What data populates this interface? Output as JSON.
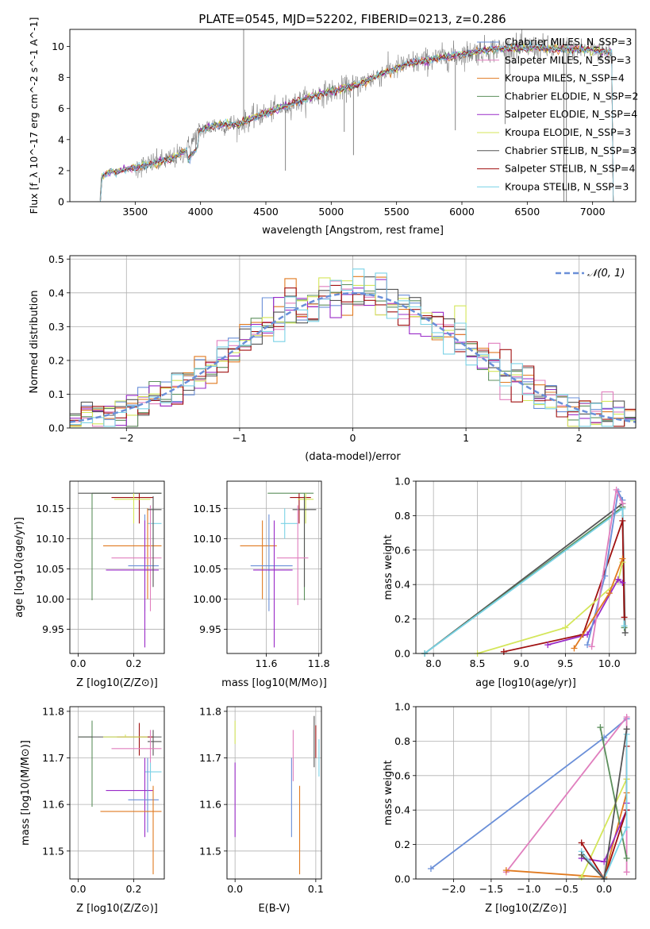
{
  "title": "PLATE=0545, MJD=52202, FIBERID=0213, z=0.286",
  "colors": {
    "Chabrier MILES": "#6a8fd8",
    "Salpeter MILES": "#e07fbe",
    "Kroupa MILES": "#e07a20",
    "Chabrier ELODIE": "#5c8f5c",
    "Salpeter ELODIE": "#9a2bc8",
    "Kroupa ELODIE": "#d4e65a",
    "Chabrier STELIB": "#555555",
    "Salpeter STELIB": "#a01010",
    "Kroupa STELIB": "#7ad2e6"
  },
  "chart_data": [
    {
      "type": "line",
      "xlabel": "wavelength [Angstrom, rest frame]",
      "ylabel": "Flux [f_λ 10^-17 erg cm^-2 s^-1 A^-1]",
      "xlim": [
        3000,
        7330
      ],
      "ylim": [
        0,
        11.1
      ],
      "xticks": [
        3500,
        4000,
        4500,
        5000,
        5500,
        6000,
        6500,
        7000
      ],
      "yticks": [
        0,
        2,
        4,
        6,
        8,
        10
      ],
      "continuum": [
        [
          3200,
          0
        ],
        [
          3230,
          0.1
        ],
        [
          3240,
          1.6
        ],
        [
          3300,
          1.9
        ],
        [
          3400,
          2.0
        ],
        [
          3500,
          2.2
        ],
        [
          3600,
          2.4
        ],
        [
          3700,
          2.6
        ],
        [
          3800,
          2.8
        ],
        [
          3900,
          3.4
        ],
        [
          4000,
          4.6
        ],
        [
          4100,
          4.9
        ],
        [
          4200,
          5.0
        ],
        [
          4300,
          5.0
        ],
        [
          4400,
          5.4
        ],
        [
          4500,
          5.7
        ],
        [
          4700,
          6.3
        ],
        [
          4900,
          6.9
        ],
        [
          5000,
          7.1
        ],
        [
          5200,
          7.5
        ],
        [
          5400,
          8.3
        ],
        [
          5600,
          8.9
        ],
        [
          5800,
          9.2
        ],
        [
          6000,
          9.5
        ],
        [
          6200,
          9.8
        ],
        [
          6400,
          9.9
        ],
        [
          6600,
          9.9
        ],
        [
          6800,
          9.8
        ],
        [
          7000,
          9.8
        ],
        [
          7150,
          9.6
        ]
      ],
      "series": [
        {
          "name": "Chabrier MILES, N_SSP=3"
        },
        {
          "name": "Salpeter MILES, N_SSP=3"
        },
        {
          "name": "Kroupa MILES, N_SSP=4"
        },
        {
          "name": "Chabrier ELODIE, N_SSP=2"
        },
        {
          "name": "Salpeter ELODIE, N_SSP=4"
        },
        {
          "name": "Kroupa ELODIE, N_SSP=3"
        },
        {
          "name": "Chabrier STELIB, N_SSP=3"
        },
        {
          "name": "Salpeter STELIB, N_SSP=4"
        },
        {
          "name": "Kroupa STELIB, N_SSP=3"
        }
      ],
      "grid": false,
      "legend": "top-right"
    },
    {
      "type": "line",
      "xlabel": "(data-model)/error",
      "ylabel": "Normed distribution",
      "xlim": [
        -2.5,
        2.5
      ],
      "ylim": [
        0,
        0.51
      ],
      "xticks": [
        -2,
        -1,
        0,
        1,
        2
      ],
      "yticks": [
        0.0,
        0.1,
        0.2,
        0.3,
        0.4,
        0.5
      ],
      "normal_label": "𝒩(0, 1)",
      "grid": true,
      "legend": "top-right"
    },
    {
      "type": "scatter",
      "xlabel": "Z [log10(Z/Z⊙)]",
      "ylabel": "age [log10(age/yr)]",
      "xlim": [
        -0.03,
        0.31
      ],
      "ylim": [
        9.91,
        10.195
      ],
      "xticks": [
        0.0,
        0.2
      ],
      "yticks": [
        9.95,
        10.0,
        10.05,
        10.1,
        10.15
      ],
      "points": [
        {
          "s": "Chabrier ELODIE",
          "x": 0.05,
          "y": 10.175,
          "ex": [
            0.05,
            0.3
          ],
          "ey": [
            9.998,
            10.175
          ]
        },
        {
          "s": "Chabrier STELIB",
          "x": 0.23,
          "y": 10.175,
          "ex": [
            0.0,
            0.3
          ],
          "ey": [
            10.175,
            10.175
          ]
        },
        {
          "s": "Salpeter STELIB",
          "x": 0.22,
          "y": 10.168,
          "ex": [
            0.12,
            0.27
          ],
          "ey": [
            10.125,
            10.175
          ]
        },
        {
          "s": "Kroupa ELODIE",
          "x": 0.2,
          "y": 10.165,
          "ex": [
            0.13,
            0.26
          ],
          "ey": [
            10.125,
            10.175
          ]
        },
        {
          "s": "Kroupa STELIB",
          "x": 0.27,
          "y": 10.125,
          "ex": [
            0.25,
            0.3
          ],
          "ey": [
            10.1,
            10.15
          ]
        },
        {
          "s": "Kroupa MILES",
          "x": 0.25,
          "y": 10.088,
          "ex": [
            0.09,
            0.3
          ],
          "ey": [
            10.0,
            10.15
          ]
        },
        {
          "s": "Salpeter MILES",
          "x": 0.26,
          "y": 10.068,
          "ex": [
            0.12,
            0.3
          ],
          "ey": [
            9.98,
            10.155
          ]
        },
        {
          "s": "Chabrier MILES",
          "x": 0.24,
          "y": 10.055,
          "ex": [
            0.18,
            0.29
          ],
          "ey": [
            9.98,
            10.14
          ]
        },
        {
          "s": "Salpeter ELODIE",
          "x": 0.24,
          "y": 10.048,
          "ex": [
            0.1,
            0.29
          ],
          "ey": [
            9.92,
            10.13
          ]
        },
        {
          "s": "Chabrier STELIB",
          "x": 0.27,
          "y": 10.148,
          "ex": [
            0.25,
            0.3
          ],
          "ey": [
            10.02,
            10.17
          ]
        }
      ]
    },
    {
      "type": "scatter",
      "xlabel": "mass [log10(M/M⊙)]",
      "xlim": [
        11.45,
        11.81
      ],
      "ylim": [
        9.91,
        10.195
      ],
      "xticks": [
        11.6,
        11.8
      ],
      "yticks": [
        9.95,
        10.0,
        10.05,
        10.1,
        10.15
      ],
      "points": [
        {
          "s": "Chabrier ELODIE",
          "x": 11.745,
          "y": 10.175,
          "ex": [
            11.605,
            11.78
          ],
          "ey": [
            9.998,
            10.175
          ]
        },
        {
          "s": "Salpeter STELIB",
          "x": 11.725,
          "y": 10.168,
          "ex": [
            11.69,
            11.77
          ],
          "ey": [
            10.125,
            10.175
          ]
        },
        {
          "s": "Kroupa ELODIE",
          "x": 11.75,
          "y": 10.165,
          "ex": [
            11.72,
            11.78
          ],
          "ey": [
            10.125,
            10.175
          ]
        },
        {
          "s": "Chabrier STELIB",
          "x": 11.745,
          "y": 10.148,
          "ex": [
            11.7,
            11.79
          ],
          "ey": [
            10.02,
            10.17
          ]
        },
        {
          "s": "Kroupa STELIB",
          "x": 11.67,
          "y": 10.125,
          "ex": [
            11.655,
            11.72
          ],
          "ey": [
            10.1,
            10.15
          ]
        },
        {
          "s": "Kroupa MILES",
          "x": 11.585,
          "y": 10.088,
          "ex": [
            11.5,
            11.64
          ],
          "ey": [
            10.0,
            10.13
          ]
        },
        {
          "s": "Salpeter MILES",
          "x": 11.72,
          "y": 10.068,
          "ex": [
            11.64,
            11.76
          ],
          "ey": [
            9.99,
            10.155
          ]
        },
        {
          "s": "Chabrier MILES",
          "x": 11.61,
          "y": 10.055,
          "ex": [
            11.54,
            11.7
          ],
          "ey": [
            9.98,
            10.14
          ]
        },
        {
          "s": "Salpeter ELODIE",
          "x": 11.63,
          "y": 10.048,
          "ex": [
            11.55,
            11.7
          ],
          "ey": [
            9.92,
            10.13
          ]
        }
      ]
    },
    {
      "type": "line",
      "xlabel": "age [log10(age/yr)]",
      "ylabel": "mass weight",
      "xlim": [
        7.8,
        10.3
      ],
      "ylim": [
        0,
        1
      ],
      "xticks": [
        8.0,
        8.5,
        9.0,
        9.5,
        10.0
      ],
      "yticks": [
        0.0,
        0.2,
        0.4,
        0.6,
        0.8,
        1.0
      ],
      "grid": true,
      "series": [
        {
          "s": "Chabrier STELIB",
          "x": [
            7.9,
            10.15,
            10.18
          ],
          "y": [
            0.0,
            0.87,
            0.12
          ]
        },
        {
          "s": "Chabrier ELODIE",
          "x": [
            7.9,
            10.15,
            10.17
          ],
          "y": [
            0.0,
            0.85,
            0.15
          ]
        },
        {
          "s": "Kroupa STELIB",
          "x": [
            7.9,
            10.15,
            10.17
          ],
          "y": [
            0.0,
            0.84,
            0.16
          ]
        },
        {
          "s": "Salpeter STELIB",
          "x": [
            8.8,
            9.7,
            10.15,
            10.17
          ],
          "y": [
            0.01,
            0.11,
            0.77,
            0.21
          ]
        },
        {
          "s": "Kroupa ELODIE",
          "x": [
            8.5,
            9.5,
            10.1,
            10.15
          ],
          "y": [
            0.0,
            0.15,
            0.42,
            0.53
          ]
        },
        {
          "s": "Salpeter ELODIE",
          "x": [
            9.3,
            9.75,
            10.1,
            10.15
          ],
          "y": [
            0.05,
            0.11,
            0.43,
            0.41
          ]
        },
        {
          "s": "Chabrier MILES",
          "x": [
            9.75,
            9.95,
            10.1,
            10.15
          ],
          "y": [
            0.05,
            0.45,
            0.94,
            0.89
          ]
        },
        {
          "s": "Salpeter MILES",
          "x": [
            9.8,
            10.08,
            10.15
          ],
          "y": [
            0.04,
            0.95,
            0.87
          ]
        },
        {
          "s": "Kroupa MILES",
          "x": [
            9.6,
            10.0,
            10.15
          ],
          "y": [
            0.03,
            0.35,
            0.55
          ]
        }
      ]
    },
    {
      "type": "scatter",
      "xlabel": "Z [log10(Z/Z⊙)]",
      "ylabel": "mass [log10(M/M⊙)]",
      "xlim": [
        -0.03,
        0.31
      ],
      "ylim": [
        11.44,
        11.81
      ],
      "xticks": [
        0.0,
        0.2
      ],
      "yticks": [
        11.5,
        11.6,
        11.7,
        11.8
      ],
      "points": [
        {
          "s": "Chabrier ELODIE",
          "x": 0.05,
          "y": 11.745,
          "ex": [
            0.0,
            0.05
          ],
          "ey": [
            11.595,
            11.78
          ]
        },
        {
          "s": "Chabrier STELIB",
          "x": 0.23,
          "y": 11.745,
          "ex": [
            0.0,
            0.3
          ],
          "ey": [
            11.745,
            11.745
          ]
        },
        {
          "s": "Salpeter STELIB",
          "x": 0.22,
          "y": 11.745,
          "ex": [
            0.14,
            0.27
          ],
          "ey": [
            11.705,
            11.775
          ]
        },
        {
          "s": "Kroupa ELODIE",
          "x": 0.17,
          "y": 11.745,
          "ex": [
            0.09,
            0.25
          ],
          "ey": [
            11.745,
            11.75
          ]
        },
        {
          "s": "Chabrier STELIB",
          "x": 0.27,
          "y": 11.735,
          "ex": [
            0.25,
            0.3
          ],
          "ey": [
            11.705,
            11.76
          ]
        },
        {
          "s": "Salpeter MILES",
          "x": 0.26,
          "y": 11.72,
          "ex": [
            0.12,
            0.3
          ],
          "ey": [
            11.65,
            11.76
          ]
        },
        {
          "s": "Kroupa STELIB",
          "x": 0.26,
          "y": 11.67,
          "ex": [
            0.24,
            0.3
          ],
          "ey": [
            11.65,
            11.69
          ]
        },
        {
          "s": "Salpeter ELODIE",
          "x": 0.24,
          "y": 11.63,
          "ex": [
            0.1,
            0.27
          ],
          "ey": [
            11.53,
            11.7
          ]
        },
        {
          "s": "Chabrier MILES",
          "x": 0.25,
          "y": 11.61,
          "ex": [
            0.18,
            0.29
          ],
          "ey": [
            11.54,
            11.7
          ]
        },
        {
          "s": "Kroupa MILES",
          "x": 0.27,
          "y": 11.585,
          "ex": [
            0.08,
            0.3
          ],
          "ey": [
            11.45,
            11.64
          ]
        }
      ]
    },
    {
      "type": "scatter",
      "xlabel": "E(B-V)",
      "xlim": [
        -0.01,
        0.107
      ],
      "ylim": [
        11.44,
        11.81
      ],
      "xticks": [
        0.0,
        0.1
      ],
      "yticks": [
        11.5,
        11.6,
        11.7,
        11.8
      ],
      "segments": [
        {
          "s": "Kroupa ELODIE",
          "x": 0.0,
          "ey": [
            11.73,
            11.78
          ]
        },
        {
          "s": "Salpeter ELODIE",
          "x": 0.0,
          "ey": [
            11.53,
            11.69
          ]
        },
        {
          "s": "Chabrier MILES",
          "x": 0.07,
          "ey": [
            11.53,
            11.7
          ]
        },
        {
          "s": "Salpeter MILES",
          "x": 0.072,
          "ey": [
            11.65,
            11.76
          ]
        },
        {
          "s": "Kroupa MILES",
          "x": 0.08,
          "ey": [
            11.45,
            11.64
          ]
        },
        {
          "s": "Chabrier STELIB",
          "x": 0.098,
          "ey": [
            11.68,
            11.79
          ]
        },
        {
          "s": "Salpeter STELIB",
          "x": 0.1,
          "ey": [
            11.7,
            11.77
          ]
        },
        {
          "s": "Kroupa STELIB",
          "x": 0.104,
          "ey": [
            11.66,
            11.74
          ]
        }
      ]
    },
    {
      "type": "line",
      "xlabel": "Z [log10(Z/Z⊙)]",
      "ylabel": "mass weight",
      "xlim": [
        -2.5,
        0.42
      ],
      "ylim": [
        0,
        1
      ],
      "xticks": [
        -2.0,
        -1.5,
        -1.0,
        -0.5,
        0.0
      ],
      "yticks": [
        0.0,
        0.2,
        0.4,
        0.6,
        0.8,
        1.0
      ],
      "grid": true,
      "series": [
        {
          "s": "Chabrier MILES",
          "x": [
            -2.3,
            0.0,
            0.3
          ],
          "y": [
            0.06,
            0.82,
            0.93
          ]
        },
        {
          "s": "Salpeter MILES",
          "x": [
            -1.3,
            0.3,
            0.3
          ],
          "y": [
            0.04,
            0.94,
            0.04
          ]
        },
        {
          "s": "Kroupa MILES",
          "x": [
            -1.3,
            0.0,
            0.3,
            0.3
          ],
          "y": [
            0.05,
            0.01,
            0.5,
            0.58
          ]
        },
        {
          "s": "Chabrier ELODIE",
          "x": [
            -0.05,
            0.3
          ],
          "y": [
            0.88,
            0.12
          ]
        },
        {
          "s": "Kroupa ELODIE",
          "x": [
            -0.3,
            0.3
          ],
          "y": [
            0.01,
            0.58
          ]
        },
        {
          "s": "Salpeter ELODIE",
          "x": [
            -0.3,
            0.0,
            0.3,
            0.3
          ],
          "y": [
            0.12,
            0.1,
            0.4,
            0.44
          ]
        },
        {
          "s": "Salpeter STELIB",
          "x": [
            -0.3,
            0.0,
            0.3,
            0.3
          ],
          "y": [
            0.21,
            0.0,
            0.4,
            0.77
          ]
        },
        {
          "s": "Kroupa STELIB",
          "x": [
            -0.3,
            0.0,
            0.3,
            0.3
          ],
          "y": [
            0.16,
            0.0,
            0.3,
            0.84
          ]
        },
        {
          "s": "Chabrier STELIB",
          "x": [
            -0.3,
            0.0,
            0.3
          ],
          "y": [
            0.14,
            0.0,
            0.87
          ]
        }
      ]
    }
  ]
}
